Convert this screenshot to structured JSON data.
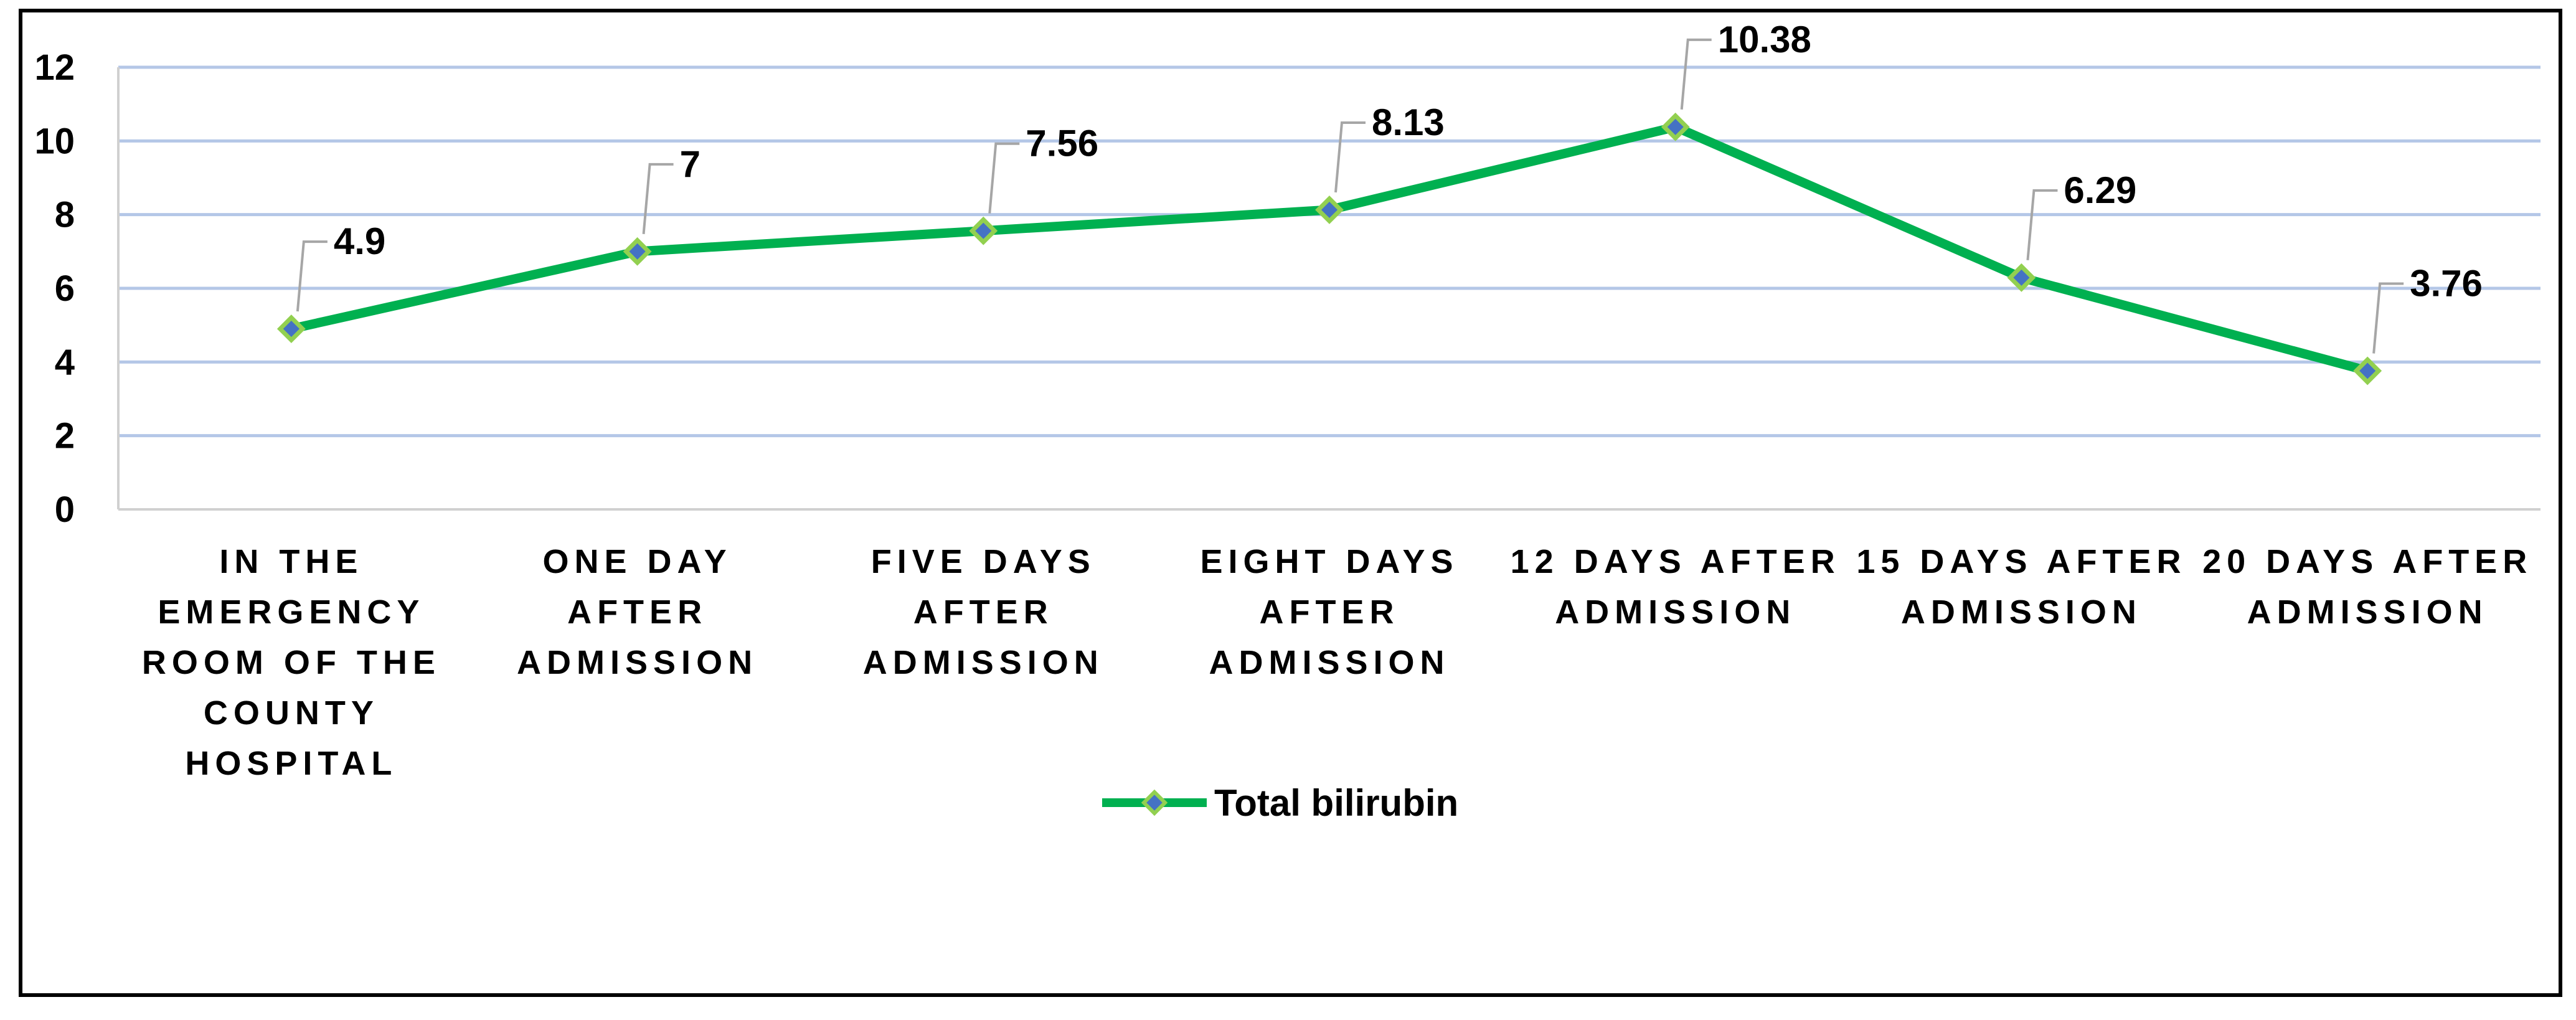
{
  "chart_data": {
    "type": "line",
    "title": "",
    "xlabel": "",
    "ylabel": "",
    "categories": [
      [
        "IN THE",
        "EMERGENCY",
        "ROOM OF THE",
        "COUNTY",
        "HOSPITAL"
      ],
      [
        "ONE DAY",
        "AFTER",
        "ADMISSION"
      ],
      [
        "FIVE DAYS",
        "AFTER",
        "ADMISSION"
      ],
      [
        "EIGHT DAYS",
        "AFTER",
        "ADMISSION"
      ],
      [
        "12 DAYS AFTER",
        "ADMISSION"
      ],
      [
        "15 DAYS AFTER",
        "ADMISSION"
      ],
      [
        "20 DAYS AFTER",
        "ADMISSION"
      ]
    ],
    "series": [
      {
        "name": "Total bilirubin",
        "values": [
          4.9,
          7,
          7.56,
          8.13,
          10.38,
          6.29,
          3.76
        ],
        "data_labels": [
          "4.9",
          "7",
          "7.56",
          "8.13",
          "10.38",
          "6.29",
          "3.76"
        ],
        "color": "#00B050",
        "marker": "diamond",
        "marker_fill": "#4472C4",
        "marker_edge": "#92D050"
      }
    ],
    "ylim": [
      0,
      12
    ],
    "yticks": [
      0,
      2,
      4,
      6,
      8,
      10,
      12
    ],
    "grid": true,
    "gridline_color": "#B4C7E7",
    "legend": "bottom-center"
  }
}
